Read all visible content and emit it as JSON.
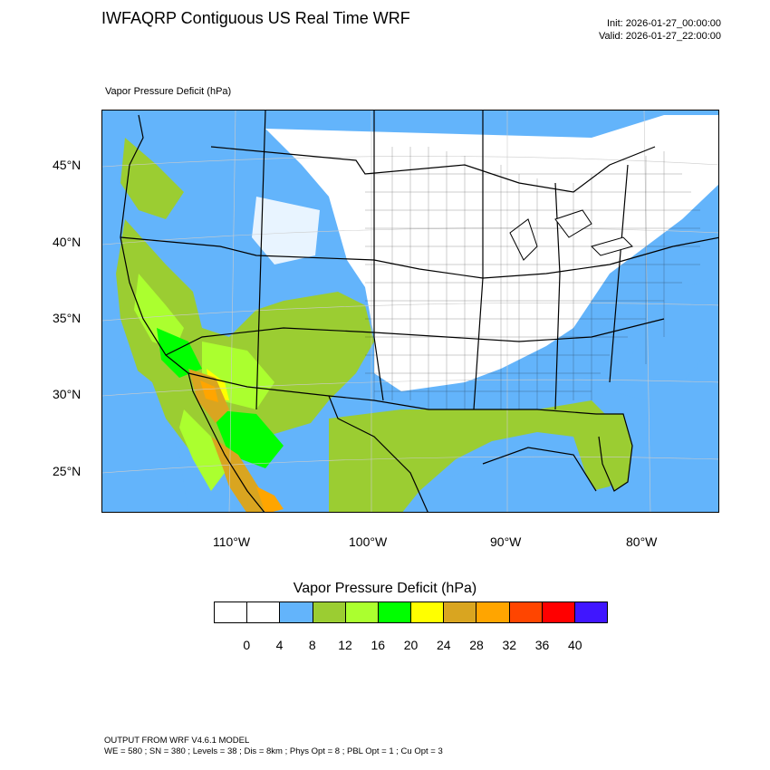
{
  "header": {
    "title": "IWFAQRP Contiguous US Real Time WRF",
    "init": "Init: 2026-01-27_00:00:00",
    "valid": "Valid: 2026-01-27_22:00:00"
  },
  "field_label": "Vapor Pressure Deficit   (hPa)",
  "map": {
    "lat_labels": [
      "45°N",
      "40°N",
      "35°N",
      "30°N",
      "25°N"
    ],
    "lon_labels": [
      "110°W",
      "100°W",
      "90°W",
      "80°W"
    ],
    "colors": {
      "ocean_low": "#63b4fb",
      "snow_white": "#ffffff",
      "dry_green": "#9bcd32",
      "light_green": "#abff2f",
      "green": "#00ff00",
      "yellow": "#ffff00",
      "goldenrod": "#d9a520",
      "orange": "#ffa500",
      "border": "#000000"
    }
  },
  "colorbar": {
    "title": "Vapor Pressure Deficit  (hPa)",
    "colors": [
      "#ffffff",
      "#ffffff",
      "#63b4fb",
      "#9bcd32",
      "#abff2f",
      "#00ff00",
      "#ffff00",
      "#d9a520",
      "#ffa500",
      "#ff4500",
      "#ff0000",
      "#4016ff"
    ],
    "labels": [
      "0",
      "4",
      "8",
      "12",
      "16",
      "20",
      "24",
      "28",
      "32",
      "36",
      "40"
    ]
  },
  "footer": {
    "line1": "OUTPUT FROM WRF V4.6.1 MODEL",
    "line2": "WE = 580 ; SN = 380 ; Levels = 38 ; Dis = 8km ; Phys Opt = 8 ; PBL Opt = 1 ; Cu Opt = 3"
  }
}
